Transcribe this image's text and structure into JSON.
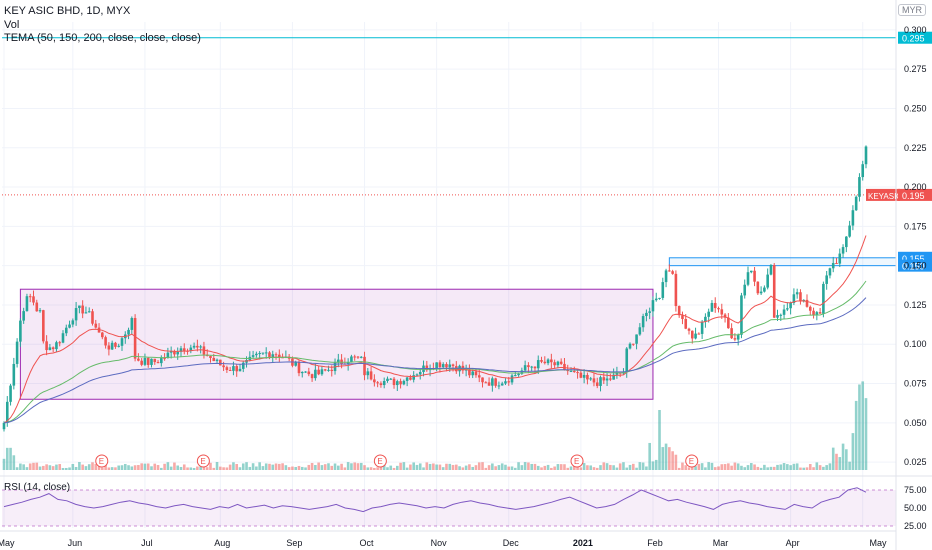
{
  "header": {
    "title": "KEY ASIC BHD, 1D, MYX",
    "vol_label": "Vol",
    "indicator": "TEMA (50, 150, 200, close, close, close)",
    "currency": "MYR"
  },
  "rsi": {
    "label": "RSI (14, close)",
    "ticks": [
      "75.00",
      "50.00",
      "25.00"
    ],
    "values": [
      52,
      55,
      58,
      62,
      65,
      70,
      62,
      60,
      55,
      52,
      50,
      52,
      55,
      58,
      60,
      57,
      55,
      52,
      50,
      53,
      55,
      52,
      50,
      48,
      52,
      50,
      55,
      50,
      52,
      54,
      50,
      53,
      52,
      50,
      48,
      50,
      52,
      55,
      50,
      48,
      45,
      50,
      52,
      55,
      57,
      55,
      53,
      50,
      52,
      50,
      55,
      58,
      60,
      57,
      55,
      52,
      50,
      48,
      50,
      52,
      55,
      58,
      62,
      65,
      60,
      55,
      50,
      52,
      55,
      62,
      68,
      75,
      70,
      65,
      60,
      62,
      58,
      55,
      52,
      48,
      55,
      58,
      60,
      57,
      55,
      52,
      50,
      48,
      55,
      52,
      50,
      58,
      62,
      65,
      75,
      78,
      72
    ]
  },
  "chart_data": {
    "type": "candlestick",
    "symbol": "KEYASIC",
    "last_price": "0.195",
    "price_ticks": [
      "0.300",
      "0.275",
      "0.250",
      "0.225",
      "0.200",
      "0.175",
      "0.150",
      "0.125",
      "0.100",
      "0.075",
      "0.050",
      "0.025"
    ],
    "price_range": [
      0.02,
      0.305
    ],
    "highlight_levels": [
      {
        "label": "0.295",
        "value": 0.295,
        "color": "#00bcd4"
      },
      {
        "label": "0.155",
        "value": 0.155,
        "color": "#2196f3"
      },
      {
        "label": "0.150",
        "value": 0.15,
        "color": "#2196f3"
      }
    ],
    "x_labels": [
      "May",
      "Jun",
      "Jul",
      "Aug",
      "Sep",
      "Oct",
      "Nov",
      "Dec",
      "2021",
      "Feb",
      "Mar",
      "Apr",
      "May"
    ],
    "earnings_markers": [
      "E",
      "E",
      "E",
      "E",
      "E"
    ],
    "range_box": {
      "from_index": 5,
      "to_index": 198,
      "top": 0.135,
      "bottom": 0.065
    },
    "right_box": {
      "from_index": 203,
      "to_index": 263,
      "top": 0.155,
      "bottom": 0.15
    }
  }
}
